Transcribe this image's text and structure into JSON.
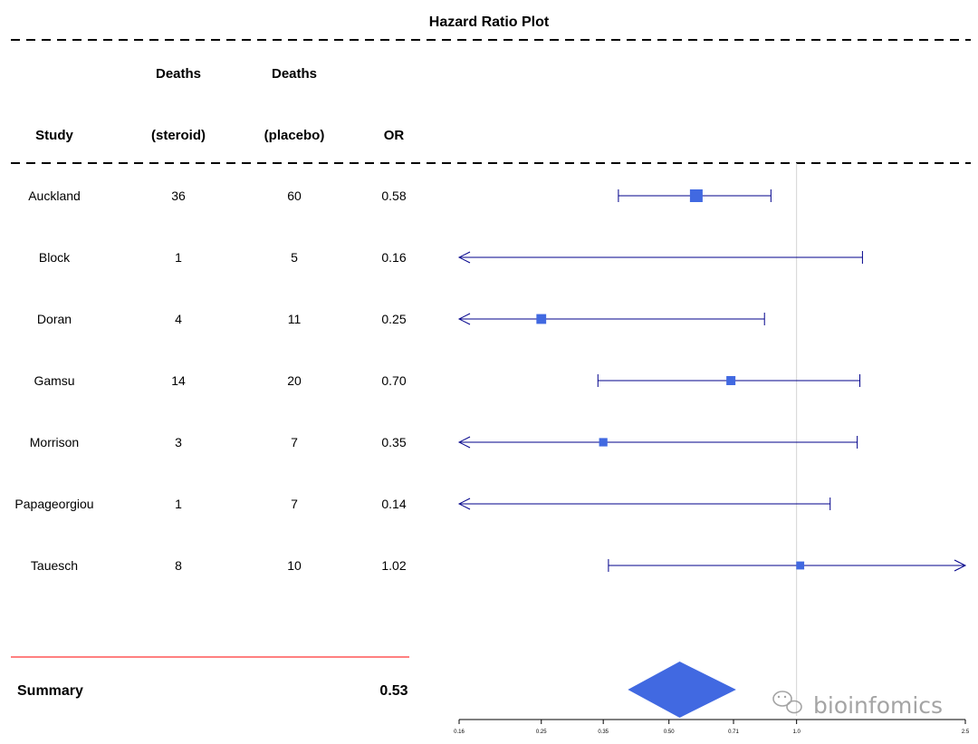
{
  "chart_data": {
    "type": "forest",
    "title": "Hazard Ratio Plot",
    "columns": {
      "study": [
        "",
        "Study"
      ],
      "deaths_steroid": [
        "Deaths",
        "(steroid)"
      ],
      "deaths_placebo": [
        "Deaths",
        "(placebo)"
      ],
      "or": [
        "",
        "OR"
      ]
    },
    "rows": [
      {
        "study": "Auckland",
        "deaths_steroid": "36",
        "deaths_placebo": "60",
        "or_label": "0.58",
        "or": 0.58,
        "lower": 0.38,
        "upper": 0.87,
        "weight": 1.0,
        "arrow_left": false,
        "arrow_right": false
      },
      {
        "study": "Block",
        "deaths_steroid": "1",
        "deaths_placebo": "5",
        "or_label": "0.16",
        "or": 0.16,
        "lower": 0.16,
        "upper": 1.43,
        "weight": 0.0,
        "arrow_left": true,
        "arrow_right": false
      },
      {
        "study": "Doran",
        "deaths_steroid": "4",
        "deaths_placebo": "11",
        "or_label": "0.25",
        "or": 0.25,
        "lower": 0.16,
        "upper": 0.84,
        "weight": 0.6,
        "arrow_left": true,
        "arrow_right": false
      },
      {
        "study": "Gamsu",
        "deaths_steroid": "14",
        "deaths_placebo": "20",
        "or_label": "0.70",
        "or": 0.7,
        "lower": 0.34,
        "upper": 1.41,
        "weight": 0.5,
        "arrow_left": false,
        "arrow_right": false
      },
      {
        "study": "Morrison",
        "deaths_steroid": "3",
        "deaths_placebo": "7",
        "or_label": "0.35",
        "or": 0.35,
        "lower": 0.16,
        "upper": 1.39,
        "weight": 0.4,
        "arrow_left": true,
        "arrow_right": false
      },
      {
        "study": "Papageorgiou",
        "deaths_steroid": "1",
        "deaths_placebo": "7",
        "or_label": "0.14",
        "or": 0.14,
        "lower": 0.16,
        "upper": 1.2,
        "weight": 0.0,
        "arrow_left": true,
        "arrow_right": false
      },
      {
        "study": "Tauesch",
        "deaths_steroid": "8",
        "deaths_placebo": "10",
        "or_label": "1.02",
        "or": 1.02,
        "lower": 0.36,
        "upper": 2.5,
        "weight": 0.35,
        "arrow_left": false,
        "arrow_right": true
      }
    ],
    "summary": {
      "label": "Summary",
      "or_label": "0.53",
      "or": 0.53,
      "lower": 0.4,
      "upper": 0.72
    },
    "x_ticks": [
      0.16,
      0.25,
      0.35,
      0.5,
      0.71,
      1.0,
      2.5
    ],
    "x_tick_labels": [
      "0.16",
      "0.25",
      "0.35",
      "0.50",
      "0.71",
      "1.0",
      "2.5"
    ],
    "xlim": [
      0.16,
      2.5
    ],
    "xscale": "log",
    "reference_line": 1.0,
    "colors": {
      "box": "#4169e1",
      "line": "#00008b",
      "summary": "#4169e1",
      "summary_rule": "#ff0000",
      "ref_line": "#d3d3d3"
    }
  },
  "watermark": {
    "text": "bioinfomics",
    "icon": "wechat-icon"
  }
}
